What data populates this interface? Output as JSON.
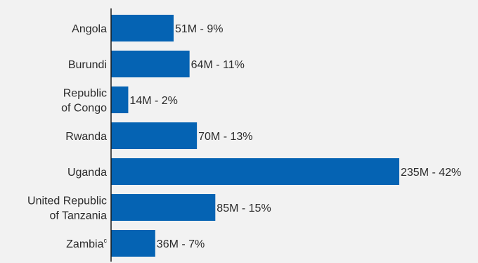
{
  "chart_data": {
    "type": "bar",
    "orientation": "horizontal",
    "title": "",
    "xlabel": "",
    "ylabel": "",
    "grid": false,
    "legend": "none",
    "xlim": [
      0,
      235
    ],
    "categories": [
      {
        "lines": [
          "Angola"
        ],
        "sup": ""
      },
      {
        "lines": [
          "Burundi"
        ],
        "sup": ""
      },
      {
        "lines": [
          "Republic",
          "of Congo"
        ],
        "sup": ""
      },
      {
        "lines": [
          "Rwanda"
        ],
        "sup": ""
      },
      {
        "lines": [
          "Uganda"
        ],
        "sup": ""
      },
      {
        "lines": [
          "United Republic",
          "of Tanzania"
        ],
        "sup": ""
      },
      {
        "lines": [
          "Zambia"
        ],
        "sup": "c"
      }
    ],
    "values": [
      51,
      64,
      14,
      70,
      235,
      85,
      36
    ],
    "labels": [
      "51M - 9%",
      "64M - 11%",
      "14M - 2%",
      "70M - 13%",
      "235M - 42%",
      "85M - 15%",
      "36M - 7%"
    ],
    "colors": {
      "bar": "#0563b3",
      "axis": "#1a1a1a",
      "text": "#2b2b2b",
      "background": "#f2f2f2"
    }
  }
}
